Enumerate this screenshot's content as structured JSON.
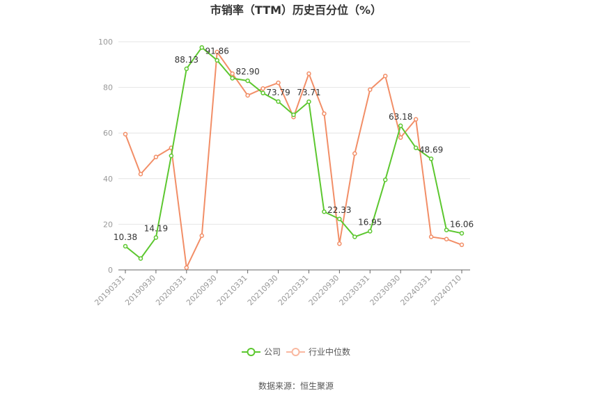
{
  "chart_data": {
    "type": "line",
    "title": "市销率（TTM）历史百分位（%）",
    "xlabel": "",
    "ylabel": "",
    "ylim": [
      0,
      100
    ],
    "yticks": [
      0,
      20,
      40,
      60,
      80,
      100
    ],
    "grid": true,
    "legend_position": "bottom",
    "x": [
      "20190331",
      "20190630",
      "20190930",
      "20191231",
      "20200331",
      "20200630",
      "20200930",
      "20201231",
      "20210331",
      "20210630",
      "20210930",
      "20211231",
      "20220331",
      "20220630",
      "20220930",
      "20221231",
      "20230331",
      "20230630",
      "20230930",
      "20231231",
      "20240331",
      "20240630",
      "20240710"
    ],
    "x_tick_labels": [
      "20190331",
      "20190930",
      "20200331",
      "20200930",
      "20210331",
      "20210930",
      "20220331",
      "20220930",
      "20230331",
      "20230930",
      "20240331",
      "20240710"
    ],
    "x_tick_indices": [
      0,
      2,
      4,
      6,
      8,
      10,
      12,
      14,
      16,
      18,
      20,
      22
    ],
    "series": [
      {
        "name": "公司",
        "color": "#5cc72f",
        "values": [
          10.38,
          5,
          14.19,
          50,
          88.13,
          97.5,
          91.86,
          84,
          82.9,
          77.5,
          73.79,
          68,
          73.71,
          25.5,
          22.33,
          14.5,
          16.95,
          39.5,
          63.18,
          53.5,
          48.69,
          17.5,
          16.06
        ],
        "labels": {
          "0": "10.38",
          "2": "14.19",
          "4": "88.13",
          "6": "91.86",
          "8": "82.90",
          "10": "73.79",
          "12": "73.71",
          "14": "22.33",
          "16": "16.95",
          "18": "63.18",
          "20": "48.69",
          "22": "16.06"
        }
      },
      {
        "name": "行业中位数",
        "color": "#f28e67",
        "values": [
          59.5,
          42,
          49.5,
          53.5,
          1,
          15,
          95.5,
          86,
          76.5,
          79.5,
          82,
          67,
          86,
          68.5,
          11.5,
          51,
          79,
          85,
          58,
          66,
          14.5,
          13.5,
          11
        ]
      }
    ]
  },
  "source_text": "数据来源：恒生聚源"
}
